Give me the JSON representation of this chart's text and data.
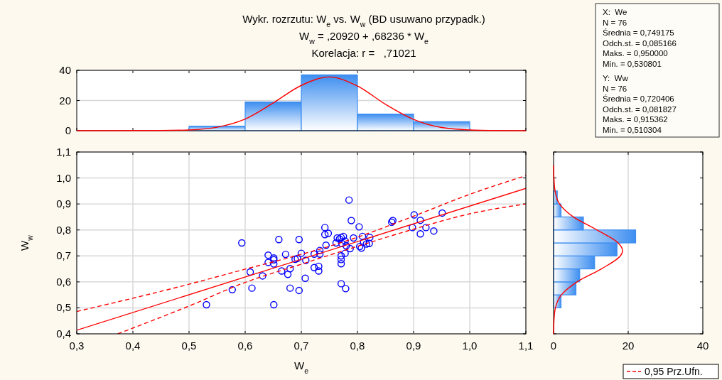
{
  "chart_data": [
    {
      "type": "histogram",
      "title": "Wykr. rozrzutu: W$_{e}$ vs. W$_{w}$ (BD usuwano przypadk.)",
      "subtitle": "W$_{w}$ = ,20920 + ,68236 * W$_{e}$",
      "annotations": [
        "Korelacja: r =   ,71021"
      ],
      "bins": [
        0.5,
        0.6,
        0.7,
        0.8,
        0.9,
        1.0
      ],
      "values": [
        3,
        19,
        37,
        11,
        6
      ],
      "color": "#3d8ef0",
      "xlim": [
        0.3,
        1.1
      ],
      "xticks": [
        {
          "value": 0.3,
          "label": null
        },
        {
          "value": 0.4,
          "label": null
        },
        {
          "value": 0.5,
          "label": null
        },
        {
          "value": 0.6,
          "label": null
        },
        {
          "value": 0.7,
          "label": null
        },
        {
          "value": 0.8,
          "label": null
        },
        {
          "value": 0.9,
          "label": null
        },
        {
          "value": 1.0,
          "label": null
        },
        {
          "value": 1.1,
          "label": null
        }
      ],
      "ylim": [
        0,
        40
      ],
      "yticks": [
        0,
        20,
        40
      ],
      "tick_labels": "y",
      "grid": "y",
      "series": [
        {
          "type": "line",
          "color": "#ff0000",
          "x": [
            0.3,
            0.45,
            0.5,
            0.55,
            0.6,
            0.65,
            0.7,
            0.75,
            0.8,
            0.85,
            0.9,
            0.95,
            1.0,
            1.05,
            1.1
          ],
          "values": [
            0,
            0.1,
            0.5,
            2.3,
            7.7,
            18.4,
            30,
            35.6,
            29.6,
            17.5,
            7.5,
            2.1,
            0.5,
            0.1,
            0
          ]
        }
      ]
    },
    {
      "type": "scatter",
      "xlabel": "W$_{e}$",
      "ylabel": "W$_{w}$",
      "xlim": [
        0.3,
        1.1
      ],
      "xticks": [
        {
          "value": 0.3,
          "label": "0,3"
        },
        {
          "value": 0.4,
          "label": "0,4"
        },
        {
          "value": 0.5,
          "label": "0,5"
        },
        {
          "value": 0.6,
          "label": "0,6"
        },
        {
          "value": 0.7,
          "label": "0,7"
        },
        {
          "value": 0.8,
          "label": "0,8"
        },
        {
          "value": 0.9,
          "label": "0,9"
        },
        {
          "value": 1.0,
          "label": "1,0"
        },
        {
          "value": 1.1,
          "label": "1,1"
        }
      ],
      "ylim": [
        0.4,
        1.1
      ],
      "yticks": [
        {
          "value": 0.4,
          "label": "0,4"
        },
        {
          "value": 0.5,
          "label": "0,5"
        },
        {
          "value": 0.6,
          "label": "0,6"
        },
        {
          "value": 0.7,
          "label": "0,7"
        },
        {
          "value": 0.8,
          "label": "0,8"
        },
        {
          "value": 0.9,
          "label": "0,9"
        },
        {
          "value": 1.0,
          "label": "1,0"
        },
        {
          "value": 1.1,
          "label": "1,1"
        }
      ],
      "grid": true,
      "legend": "bottom right",
      "series": [
        {
          "type": "scatter",
          "color": "#0000ff",
          "marker": "circle",
          "x": [
            0.594,
            0.531,
            0.577,
            0.609,
            0.612,
            0.631,
            0.641,
            0.641,
            0.651,
            0.651,
            0.651,
            0.651,
            0.66,
            0.665,
            0.672,
            0.676,
            0.68,
            0.68,
            0.689,
            0.693,
            0.696,
            0.696,
            0.7,
            0.708,
            0.707,
            0.723,
            0.731,
            0.731,
            0.723,
            0.733,
            0.733,
            0.742,
            0.742,
            0.748,
            0.744,
            0.762,
            0.764,
            0.768,
            0.771,
            0.772,
            0.775,
            0.778,
            0.78,
            0.778,
            0.771,
            0.771,
            0.771,
            0.771,
            0.779,
            0.785,
            0.789,
            0.787,
            0.793,
            0.803,
            0.804,
            0.807,
            0.809,
            0.811,
            0.816,
            0.822,
            0.821,
            0.861,
            0.863,
            0.901,
            0.898,
            0.912,
            0.912,
            0.922,
            0.936,
            0.951
          ],
          "values": [
            0.75,
            0.512,
            0.57,
            0.638,
            0.576,
            0.623,
            0.703,
            0.675,
            0.692,
            0.685,
            0.669,
            0.512,
            0.763,
            0.642,
            0.706,
            0.629,
            0.651,
            0.576,
            0.687,
            0.69,
            0.763,
            0.567,
            0.71,
            0.683,
            0.614,
            0.655,
            0.66,
            0.642,
            0.707,
            0.721,
            0.707,
            0.809,
            0.782,
            0.787,
            0.741,
            0.75,
            0.769,
            0.765,
            0.771,
            0.748,
            0.775,
            0.757,
            0.739,
            0.71,
            0.7,
            0.686,
            0.67,
            0.593,
            0.574,
            0.915,
            0.836,
            0.728,
            0.769,
            0.812,
            0.736,
            0.73,
            0.775,
            0.753,
            0.746,
            0.771,
            0.748,
            0.83,
            0.836,
            0.858,
            0.809,
            0.837,
            0.785,
            0.809,
            0.796,
            0.865
          ]
        },
        {
          "type": "line",
          "color": "#ff0000",
          "line_style": "solid",
          "x": [
            0.3,
            1.1
          ],
          "values": [
            0.414,
            0.96
          ]
        },
        {
          "type": "line",
          "name": "0,95 Prz.Ufn.",
          "color": "#ff0000",
          "line_style": "dashed",
          "x": [
            0.3,
            0.5,
            0.6,
            0.7,
            0.75,
            0.8,
            0.9,
            1.0,
            1.1
          ],
          "values": [
            0.486,
            0.591,
            0.649,
            0.706,
            0.737,
            0.772,
            0.853,
            0.937,
            1.009
          ]
        },
        {
          "type": "line",
          "color": "#ff0000",
          "line_style": "dashed",
          "x": [
            0.373,
            0.5,
            0.6,
            0.7,
            0.75,
            0.8,
            0.9,
            1.0,
            1.1
          ],
          "values": [
            0.4,
            0.507,
            0.598,
            0.668,
            0.703,
            0.737,
            0.803,
            0.862,
            0.9
          ]
        }
      ]
    },
    {
      "type": "histogram",
      "orientation": "horizontal",
      "bins": [
        0.5,
        0.55,
        0.6,
        0.65,
        0.7,
        0.75,
        0.8,
        0.85,
        0.9,
        0.95
      ],
      "values": [
        2,
        6,
        7,
        11,
        17,
        22,
        8,
        2,
        1
      ],
      "color": "#3d8ef0",
      "xlim": [
        0,
        40
      ],
      "xticks": [
        0,
        20,
        40
      ],
      "ylim": [
        0.4,
        1.1
      ],
      "yticks": [
        {
          "value": 0.4,
          "label": null
        },
        {
          "value": 0.5,
          "label": null
        },
        {
          "value": 0.6,
          "label": null
        },
        {
          "value": 0.7,
          "label": null
        },
        {
          "value": 0.8,
          "label": null
        },
        {
          "value": 0.9,
          "label": null
        },
        {
          "value": 1.0,
          "label": null
        },
        {
          "value": 1.1,
          "label": null
        }
      ],
      "tick_labels": "x",
      "grid": "x",
      "series": [
        {
          "type": "line",
          "color": "#ff0000",
          "x": [
            0.4,
            0.45,
            0.5,
            0.55,
            0.6,
            0.65,
            0.7,
            0.72,
            0.75,
            0.8,
            0.85,
            0.9,
            0.95,
            1.0,
            1.05
          ],
          "values": [
            0,
            0.1,
            0.5,
            2.1,
            6.3,
            12.8,
            17.9,
            18.5,
            17.3,
            11.6,
            5.3,
            1.6,
            0.4,
            0.1,
            0
          ]
        }
      ]
    },
    {
      "type": "other",
      "annotations": [
        "X:  We",
        "N = 76",
        "Średnia = 0,749175",
        "Odch.st. = 0,085166",
        "Maks. = 0,950000",
        "Min. = 0,530801",
        "Y:  Ww",
        "N = 76",
        "Średnia = 0,720406",
        "Odch.st. = 0,081827",
        "Maks. = 0,915362",
        "Min. = 0,510304"
      ]
    }
  ]
}
